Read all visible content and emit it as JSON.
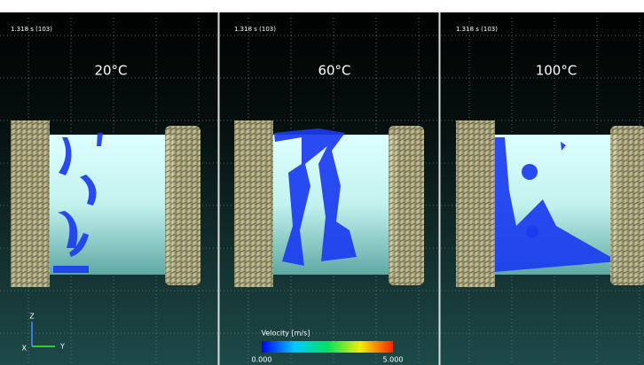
{
  "panels": [
    {
      "timestamp": "1.318 s (103)",
      "temperature": "20°C"
    },
    {
      "timestamp": "1.318 s (103)",
      "temperature": "60°C"
    },
    {
      "timestamp": "1.318 s (103)",
      "temperature": "100°C"
    }
  ],
  "colorbar": {
    "title": "Velocity [m/s]",
    "min_label": "0.000",
    "max_label": "5.000"
  },
  "axes_triad": {
    "z": "Z",
    "y": "Y",
    "x": "X"
  }
}
